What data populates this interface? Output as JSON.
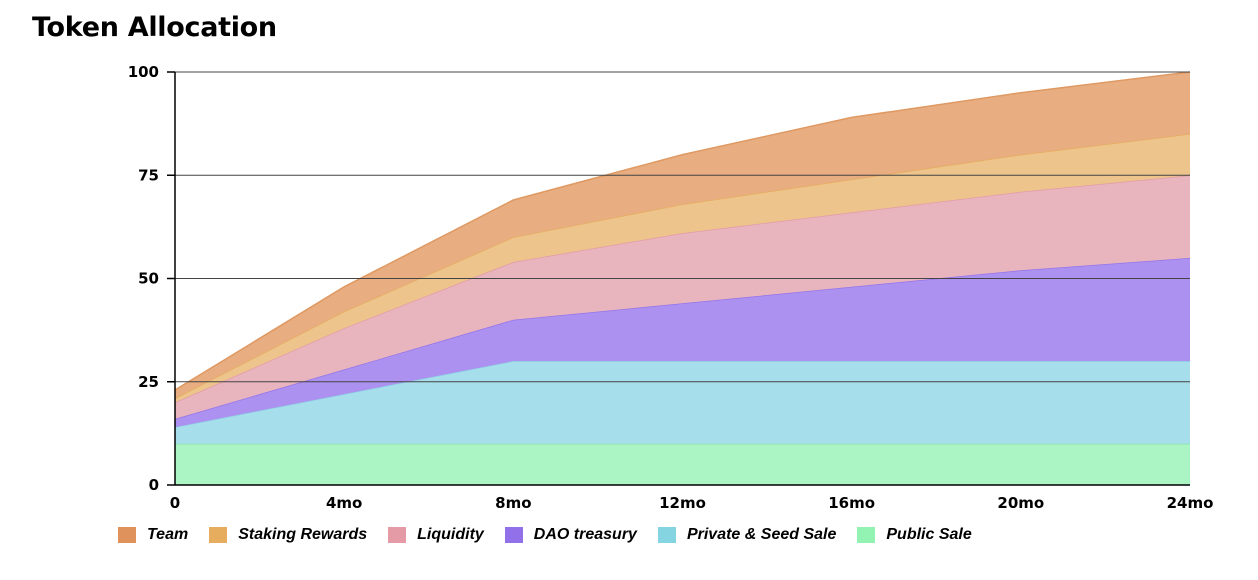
{
  "title": "Token Allocation",
  "chart_data": {
    "type": "area",
    "stacked": true,
    "title": "Token Allocation",
    "xlabel": "",
    "ylabel": "",
    "x": [
      0,
      4,
      8,
      12,
      16,
      20,
      24
    ],
    "x_tick_labels": [
      "0",
      "4mo",
      "8mo",
      "12mo",
      "16mo",
      "20mo",
      "24mo"
    ],
    "y_ticks": [
      0,
      25,
      50,
      75,
      100
    ],
    "ylim": [
      0,
      100
    ],
    "xlim": [
      0,
      24
    ],
    "grid": "horizontal",
    "legend_position": "bottom",
    "series": [
      {
        "name": "Public Sale",
        "color": "#aaf5c3",
        "stroke": "#8fe3aa",
        "values": [
          10,
          10,
          10,
          10,
          10,
          10,
          10
        ]
      },
      {
        "name": "Private & Seed Sale",
        "color": "#a6dfeb",
        "stroke": "#8fd3e3",
        "values": [
          4,
          12,
          20,
          20,
          20,
          20,
          20
        ]
      },
      {
        "name": "DAO treasury",
        "color": "#ac91f0",
        "stroke": "#9474ea",
        "values": [
          2,
          6,
          10,
          14,
          18,
          22,
          25
        ]
      },
      {
        "name": "Liquidity",
        "color": "#e8b5be",
        "stroke": "#e39ba8",
        "values": [
          4,
          10,
          14,
          17,
          18,
          19,
          20
        ]
      },
      {
        "name": "Staking Rewards",
        "color": "#edc48c",
        "stroke": "#e6ad5f",
        "values": [
          1,
          4,
          6,
          7,
          8,
          9,
          10
        ]
      },
      {
        "name": "Team",
        "color": "#e8ad80",
        "stroke": "#df9963",
        "values": [
          2,
          6,
          9,
          12,
          15,
          15,
          15
        ]
      }
    ],
    "legend_order": [
      "Team",
      "Staking Rewards",
      "Liquidity",
      "DAO treasury",
      "Private & Seed Sale",
      "Public Sale"
    ],
    "legend_swatches": {
      "Team": "#e0925c",
      "Staking Rewards": "#e7ad5f",
      "Liquidity": "#e59ba6",
      "DAO treasury": "#9270ea",
      "Private & Seed Sale": "#85d4e1",
      "Public Sale": "#93f3b3"
    }
  }
}
